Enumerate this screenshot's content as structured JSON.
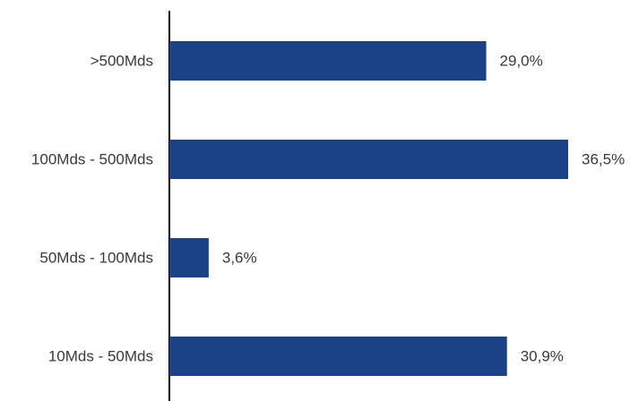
{
  "chart_data": {
    "type": "bar",
    "orientation": "horizontal",
    "categories": [
      ">500Mds",
      "100Mds - 500Mds",
      "50Mds - 100Mds",
      "10Mds - 50Mds"
    ],
    "values": [
      29.0,
      36.5,
      3.6,
      30.9
    ],
    "value_labels": [
      "29,0%",
      "36,5%",
      "3,6%",
      "30,9%"
    ],
    "unit": "%",
    "title": "",
    "xlabel": "",
    "ylabel": "",
    "xlim": [
      0,
      36.5
    ],
    "grid": false,
    "legend": "none",
    "bar_color": "#1b4286",
    "axis_color": "#000000",
    "label_color": "#3a3a3a"
  }
}
